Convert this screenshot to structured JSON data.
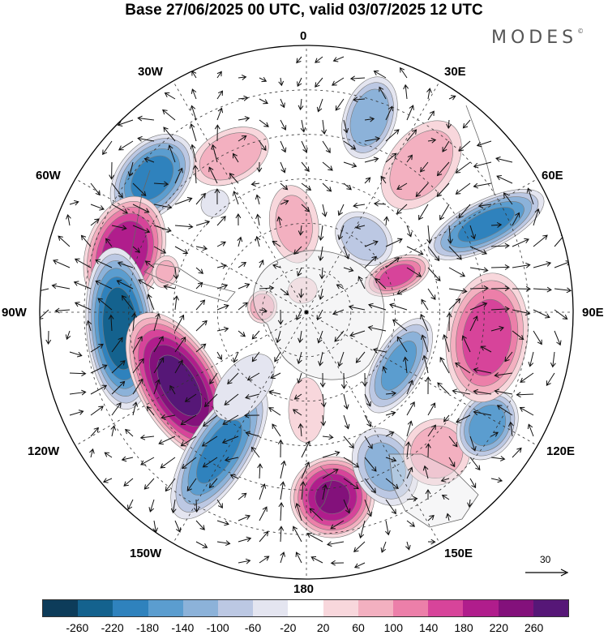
{
  "title": "Base 27/06/2025 00 UTC, valid 03/07/2025 12 UTC",
  "brand": "MODES",
  "brand_mark": "©",
  "longitude_labels": {
    "top": "0",
    "bottom": "180",
    "left": "90W",
    "right": "90E",
    "upper_left_1": "30W",
    "upper_left_2": "60W",
    "upper_right_1": "30E",
    "upper_right_2": "60E",
    "lower_left_1": "120W",
    "lower_left_2": "150W",
    "lower_right_1": "120E",
    "lower_right_2": "150E"
  },
  "reference_vector": {
    "value": "30"
  },
  "colorbar": {
    "colors": [
      "#0d3c5a",
      "#14628e",
      "#2f82bd",
      "#5b9dcf",
      "#8cb2d9",
      "#bcc8e3",
      "#e4e5f0",
      "#ffffff",
      "#f8d7dc",
      "#f3b0c0",
      "#ec7fa9",
      "#d7449a",
      "#b01d8c",
      "#83117b",
      "#561777"
    ],
    "tick_labels": [
      "-260",
      "-220",
      "-180",
      "-140",
      "-100",
      "-60",
      "-20",
      "20",
      "60",
      "100",
      "140",
      "180",
      "220",
      "260"
    ]
  },
  "anomaly_centres": [
    {
      "lon": -26,
      "colat": 39,
      "value": 95,
      "rx": 50,
      "ry": 32
    },
    {
      "lon": 18,
      "colat": 46,
      "value": -135,
      "rx": 32,
      "ry": 52
    },
    {
      "lon": -40,
      "colat": 32,
      "value": -50,
      "rx": 18,
      "ry": 16
    },
    {
      "lon": -8,
      "colat": 20,
      "value": 70,
      "rx": 30,
      "ry": 48
    },
    {
      "lon": 38,
      "colat": 21,
      "value": -95,
      "rx": 38,
      "ry": 30
    },
    {
      "lon": 38,
      "colat": 42,
      "value": 85,
      "rx": 40,
      "ry": 62
    },
    {
      "lon": -49,
      "colat": 46,
      "value": -195,
      "rx": 62,
      "ry": 42
    },
    {
      "lon": -72,
      "colat": 43,
      "value": 215,
      "rx": 72,
      "ry": 48
    },
    {
      "lon": -74,
      "colat": 33,
      "value": 60,
      "rx": 20,
      "ry": 16
    },
    {
      "lon": -95,
      "colat": 42,
      "value": -250,
      "rx": 100,
      "ry": 42
    },
    {
      "lon": -120,
      "colat": 33,
      "value": 270,
      "rx": 100,
      "ry": 50
    },
    {
      "lon": -148,
      "colat": 37,
      "value": -185,
      "rx": 38,
      "ry": 95
    },
    {
      "lon": -140,
      "colat": 22,
      "value": -50,
      "rx": 28,
      "ry": 48
    },
    {
      "lon": 172,
      "colat": 42,
      "value": 220,
      "rx": 52,
      "ry": 50
    },
    {
      "lon": 180,
      "colat": 22,
      "value": 45,
      "rx": 22,
      "ry": 40
    },
    {
      "lon": 153,
      "colat": 39,
      "value": -110,
      "rx": 38,
      "ry": 50
    },
    {
      "lon": 137,
      "colat": 43,
      "value": 85,
      "rx": 42,
      "ry": 40
    },
    {
      "lon": 122,
      "colat": 48,
      "value": -165,
      "rx": 45,
      "ry": 35
    },
    {
      "lon": 120,
      "colat": 24,
      "value": -145,
      "rx": 65,
      "ry": 30
    },
    {
      "lon": 98,
      "colat": 41,
      "value": 165,
      "rx": 80,
      "ry": 50
    },
    {
      "lon": 64,
      "colat": 45,
      "value": -190,
      "rx": 30,
      "ry": 78
    },
    {
      "lon": 68,
      "colat": 22,
      "value": 150,
      "rx": 22,
      "ry": 42
    },
    {
      "lon": -83,
      "colat": 10,
      "value": 95,
      "rx": 20,
      "ry": 18
    },
    {
      "lon": -10,
      "colat": 5,
      "value": 40,
      "rx": 18,
      "ry": 16
    }
  ]
}
